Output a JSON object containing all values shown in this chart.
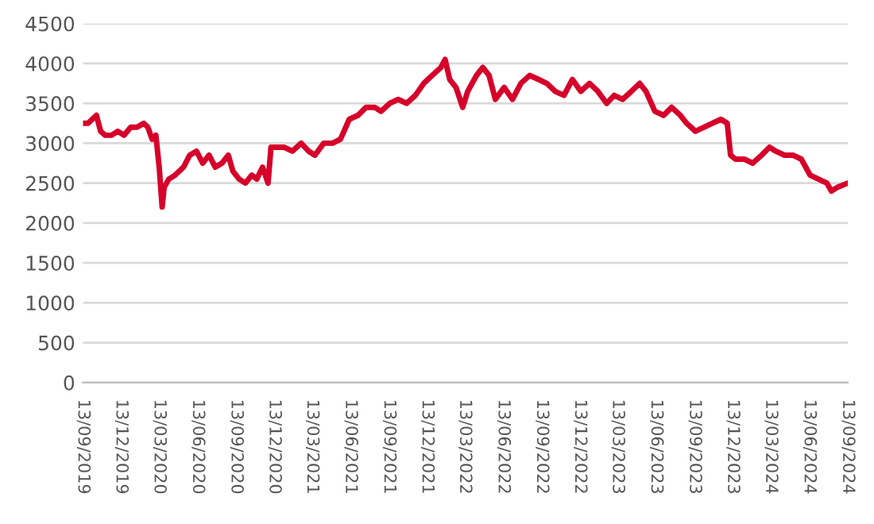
{
  "chart_data": {
    "type": "line",
    "grid": "y",
    "marker": "none",
    "line_style": "solid",
    "xlim": [
      "2019-09-13",
      "2024-09-13"
    ],
    "ylim": [
      0,
      4500
    ],
    "yticks": [
      0,
      500,
      1000,
      1500,
      2000,
      2500,
      3000,
      3500,
      4000,
      4500
    ],
    "xticks": [
      {
        "value": "2019-09-13",
        "label": "13/09/2019"
      },
      {
        "value": "2019-12-13",
        "label": "13/12/2019"
      },
      {
        "value": "2020-03-13",
        "label": "13/03/2020"
      },
      {
        "value": "2020-06-13",
        "label": "13/06/2020"
      },
      {
        "value": "2020-09-13",
        "label": "13/09/2020"
      },
      {
        "value": "2020-12-13",
        "label": "13/12/2020"
      },
      {
        "value": "2021-03-13",
        "label": "13/03/2021"
      },
      {
        "value": "2021-06-13",
        "label": "13/06/2021"
      },
      {
        "value": "2021-09-13",
        "label": "13/09/2021"
      },
      {
        "value": "2021-12-13",
        "label": "13/12/2021"
      },
      {
        "value": "2022-03-13",
        "label": "13/03/2022"
      },
      {
        "value": "2022-06-13",
        "label": "13/06/2022"
      },
      {
        "value": "2022-09-13",
        "label": "13/09/2022"
      },
      {
        "value": "2022-12-13",
        "label": "13/12/2022"
      },
      {
        "value": "2023-03-13",
        "label": "13/03/2023"
      },
      {
        "value": "2023-06-13",
        "label": "13/06/2023"
      },
      {
        "value": "2023-09-13",
        "label": "13/09/2023"
      },
      {
        "value": "2023-12-13",
        "label": "13/12/2023"
      },
      {
        "value": "2024-03-13",
        "label": "13/03/2024"
      },
      {
        "value": "2024-06-13",
        "label": "13/06/2024"
      },
      {
        "value": "2024-09-13",
        "label": "13/09/2024"
      }
    ],
    "series": [
      {
        "color": "#d6002a",
        "x": [
          "2019-09-13",
          "2019-09-25",
          "2019-10-05",
          "2019-10-15",
          "2019-10-25",
          "2019-11-05",
          "2019-11-20",
          "2019-12-05",
          "2019-12-20",
          "2020-01-05",
          "2020-01-20",
          "2020-02-05",
          "2020-02-15",
          "2020-02-25",
          "2020-03-05",
          "2020-03-13",
          "2020-03-20",
          "2020-03-25",
          "2020-04-05",
          "2020-04-20",
          "2020-05-10",
          "2020-05-25",
          "2020-06-10",
          "2020-06-25",
          "2020-07-10",
          "2020-07-25",
          "2020-08-10",
          "2020-08-25",
          "2020-09-05",
          "2020-09-20",
          "2020-10-05",
          "2020-10-20",
          "2020-11-01",
          "2020-11-15",
          "2020-11-28",
          "2020-12-05",
          "2020-12-15",
          "2021-01-05",
          "2021-01-25",
          "2021-02-15",
          "2021-03-05",
          "2021-03-20",
          "2021-04-10",
          "2021-05-01",
          "2021-05-20",
          "2021-06-10",
          "2021-07-01",
          "2021-07-20",
          "2021-08-10",
          "2021-08-25",
          "2021-09-15",
          "2021-10-05",
          "2021-10-25",
          "2021-11-15",
          "2021-12-05",
          "2021-12-25",
          "2022-01-15",
          "2022-01-25",
          "2022-02-05",
          "2022-02-20",
          "2022-03-08",
          "2022-03-20",
          "2022-04-10",
          "2022-04-25",
          "2022-05-10",
          "2022-05-25",
          "2022-06-15",
          "2022-07-05",
          "2022-07-25",
          "2022-08-15",
          "2022-09-05",
          "2022-09-25",
          "2022-10-15",
          "2022-11-05",
          "2022-11-25",
          "2022-12-15",
          "2023-01-05",
          "2023-01-25",
          "2023-02-15",
          "2023-03-05",
          "2023-03-25",
          "2023-04-15",
          "2023-05-05",
          "2023-05-20",
          "2023-06-10",
          "2023-07-01",
          "2023-07-20",
          "2023-08-10",
          "2023-08-25",
          "2023-09-15",
          "2023-10-05",
          "2023-10-25",
          "2023-11-15",
          "2023-11-30",
          "2023-12-08",
          "2023-12-20",
          "2024-01-10",
          "2024-01-30",
          "2024-02-20",
          "2024-03-10",
          "2024-03-25",
          "2024-04-15",
          "2024-05-05",
          "2024-05-25",
          "2024-06-15",
          "2024-07-05",
          "2024-07-25",
          "2024-08-05",
          "2024-08-20",
          "2024-09-13"
        ],
        "values": [
          3250,
          3250,
          3300,
          3350,
          3150,
          3100,
          3100,
          3150,
          3100,
          3200,
          3200,
          3250,
          3200,
          3050,
          3100,
          2700,
          2200,
          2450,
          2550,
          2600,
          2700,
          2850,
          2900,
          2750,
          2850,
          2700,
          2750,
          2850,
          2650,
          2550,
          2500,
          2600,
          2550,
          2700,
          2500,
          2950,
          2950,
          2950,
          2900,
          3000,
          2900,
          2850,
          3000,
          3000,
          3050,
          3300,
          3350,
          3450,
          3450,
          3400,
          3500,
          3550,
          3500,
          3600,
          3750,
          3850,
          3950,
          4050,
          3800,
          3700,
          3450,
          3650,
          3850,
          3950,
          3850,
          3550,
          3700,
          3550,
          3750,
          3850,
          3800,
          3750,
          3650,
          3600,
          3800,
          3650,
          3750,
          3650,
          3500,
          3600,
          3550,
          3650,
          3750,
          3650,
          3400,
          3350,
          3450,
          3350,
          3250,
          3150,
          3200,
          3250,
          3300,
          3250,
          2850,
          2800,
          2800,
          2750,
          2850,
          2950,
          2900,
          2850,
          2850,
          2800,
          2600,
          2550,
          2500,
          2400,
          2450,
          2500
        ]
      }
    ]
  }
}
